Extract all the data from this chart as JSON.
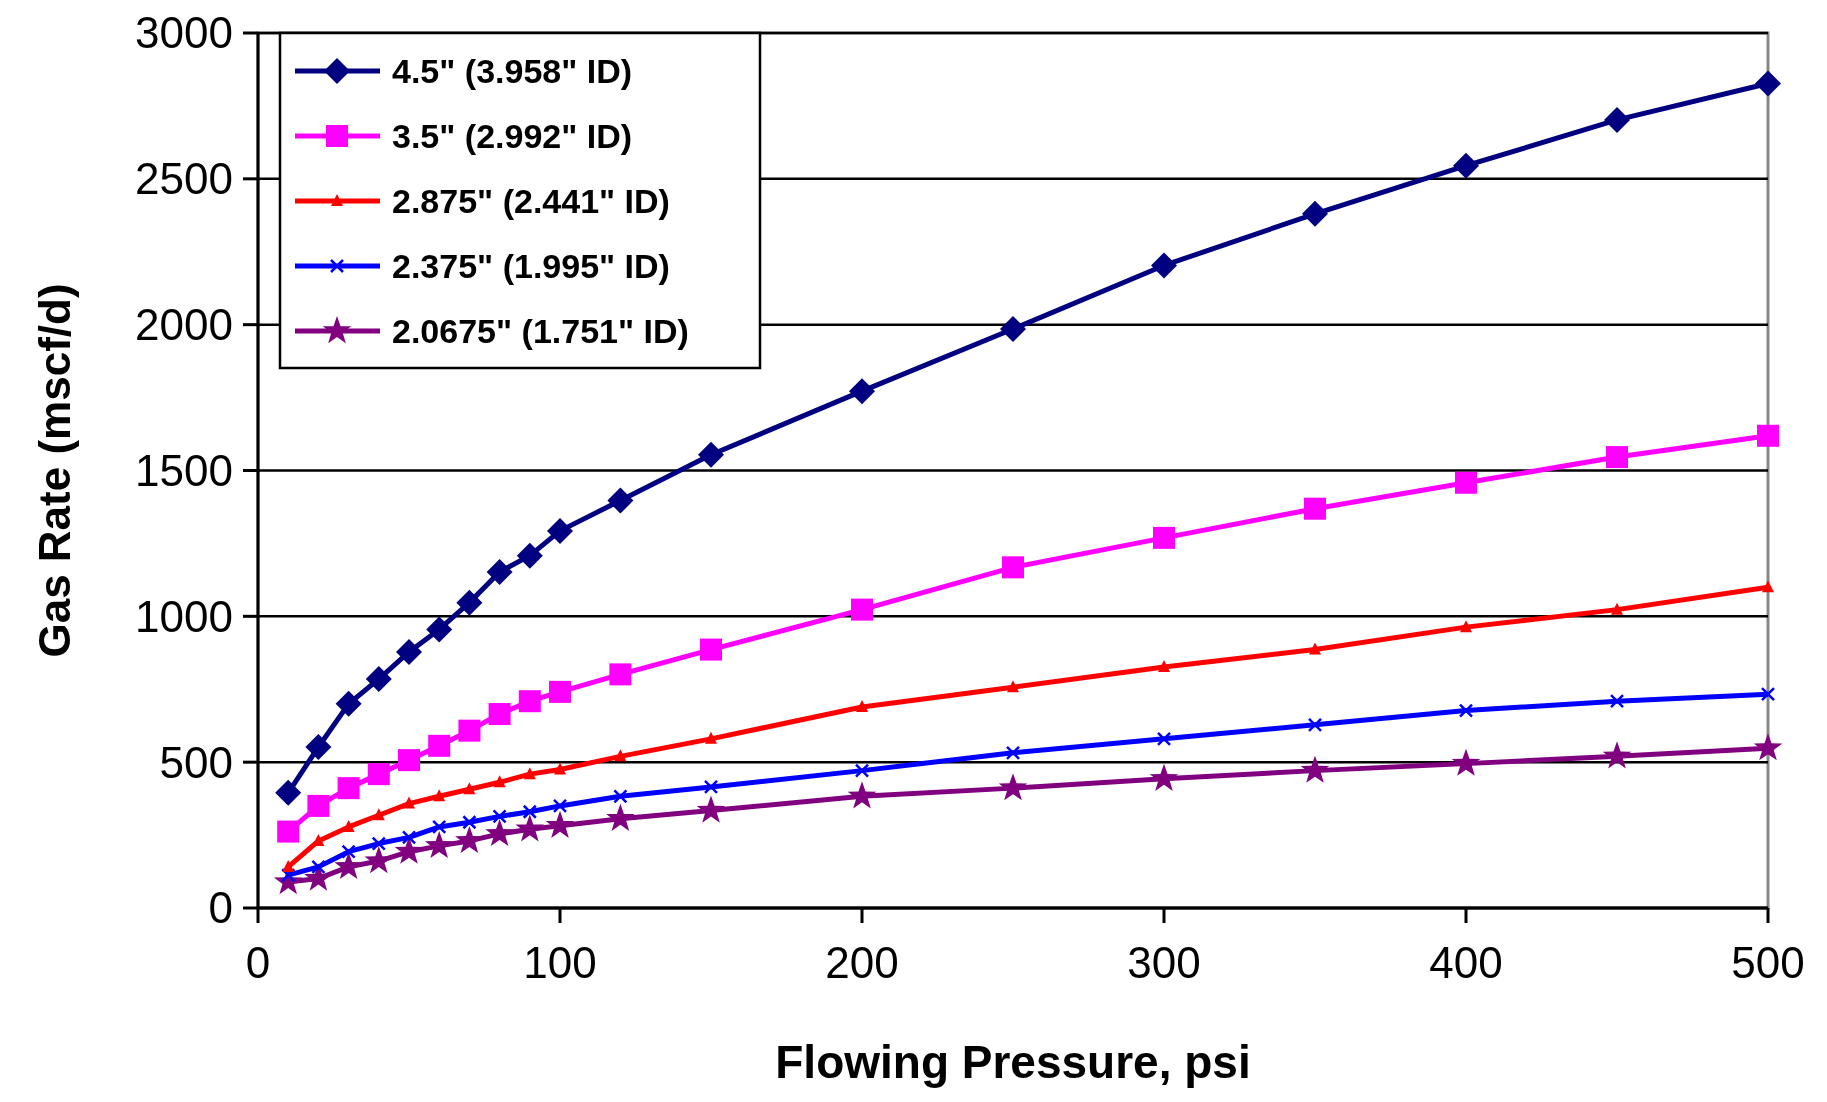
{
  "chart_data": {
    "type": "line",
    "xlabel": "Flowing Pressure, psi",
    "ylabel": "Gas Rate (mscf/d)",
    "x": [
      10,
      20,
      30,
      40,
      50,
      60,
      70,
      80,
      90,
      100,
      120,
      150,
      200,
      250,
      300,
      350,
      400,
      450,
      500
    ],
    "xlim": [
      0,
      500
    ],
    "xticks": [
      0,
      100,
      200,
      300,
      400,
      500
    ],
    "ylim": [
      0,
      3000
    ],
    "yticks": [
      0,
      500,
      1000,
      1500,
      2000,
      2500,
      3000
    ],
    "grid": "y",
    "legend": "top left",
    "line_style": "solid",
    "series": [
      {
        "name": "4.5\" (3.958\" ID)",
        "color": "#000080",
        "marker": "diamond",
        "values": [
          395,
          552,
          700,
          785,
          878,
          955,
          1047,
          1152,
          1208,
          1293,
          1397,
          1554,
          1772,
          1985,
          2203,
          2380,
          2545,
          2702,
          2827
        ]
      },
      {
        "name": "3.5\" (2.992\" ID)",
        "color": "#ff00ff",
        "marker": "square",
        "values": [
          262,
          350,
          411,
          459,
          507,
          556,
          608,
          665,
          709,
          741,
          801,
          886,
          1023,
          1168,
          1269,
          1369,
          1458,
          1546,
          1619
        ]
      },
      {
        "name": "2.875\" (2.441\" ID)",
        "color": "#ff0000",
        "marker": "triangle",
        "values": [
          141,
          230,
          278,
          318,
          358,
          383,
          407,
          431,
          459,
          475,
          520,
          580,
          689,
          757,
          826,
          886,
          963,
          1023,
          1100
        ]
      },
      {
        "name": "2.375\" (1.995\" ID)",
        "color": "#0000ff",
        "marker": "cross",
        "values": [
          113,
          141,
          193,
          221,
          242,
          278,
          294,
          314,
          330,
          350,
          383,
          415,
          471,
          532,
          580,
          628,
          677,
          709,
          733
        ]
      },
      {
        "name": "2.0675\" (1.751\" ID)",
        "color": "#800080",
        "marker": "star",
        "values": [
          89,
          101,
          141,
          161,
          193,
          213,
          230,
          254,
          270,
          282,
          306,
          334,
          383,
          411,
          443,
          471,
          495,
          520,
          548
        ]
      }
    ]
  }
}
